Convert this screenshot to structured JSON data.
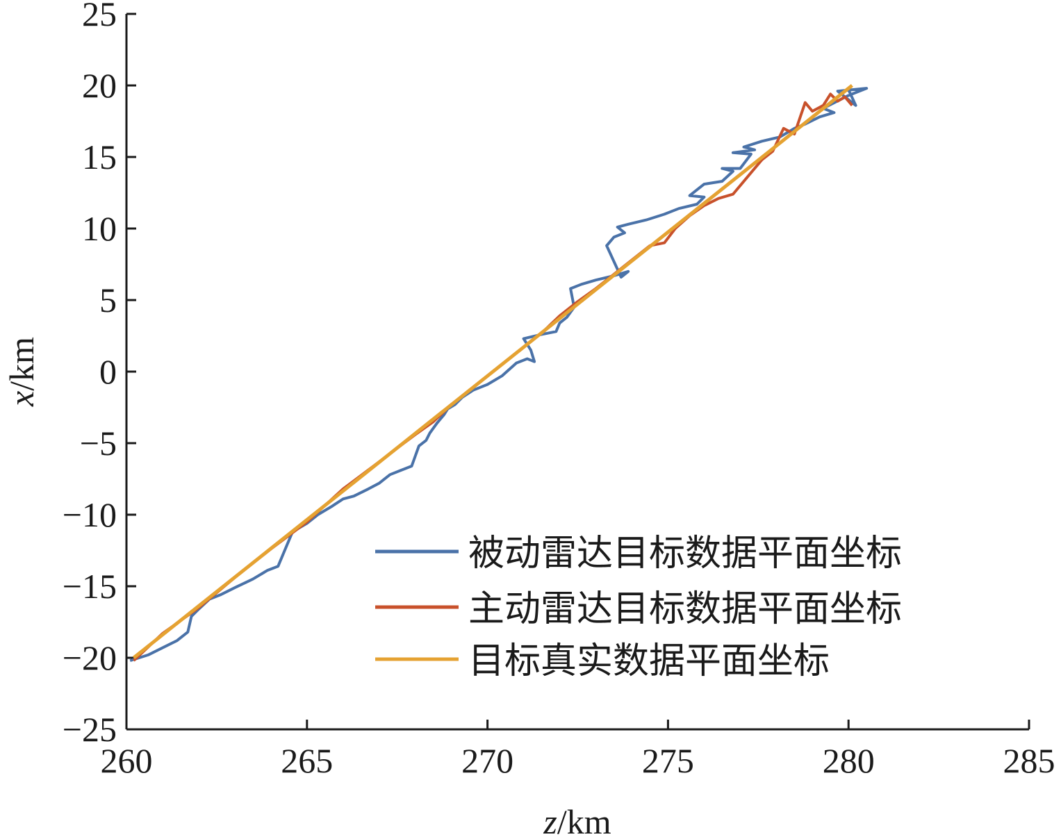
{
  "chart_data": {
    "type": "line",
    "title": "",
    "xlabel_var": "z",
    "xlabel_unit": "/km",
    "ylabel_var": "x",
    "ylabel_unit": "/km",
    "xlim": [
      260,
      285
    ],
    "ylim": [
      -25,
      25
    ],
    "xticks": [
      "260",
      "265",
      "270",
      "275",
      "280",
      "285"
    ],
    "yticks": [
      "25",
      "20",
      "15",
      "10",
      "5",
      "0",
      "−5",
      "−10",
      "−15",
      "−20",
      "−25"
    ],
    "xtick_values": [
      260,
      265,
      270,
      275,
      280,
      285
    ],
    "ytick_values": [
      25,
      20,
      15,
      10,
      5,
      0,
      -5,
      -10,
      -15,
      -20,
      -25
    ],
    "legend_position": "bottom-right",
    "series": [
      {
        "name": "被动雷达目标数据平面坐标",
        "color": "#4a72a8",
        "x": [
          260.1,
          260.6,
          261.0,
          261.4,
          261.7,
          261.8,
          262.0,
          262.3,
          262.6,
          263.0,
          263.5,
          263.9,
          264.2,
          264.3,
          264.4,
          264.6,
          265.0,
          265.3,
          265.7,
          266.0,
          266.3,
          266.7,
          267.0,
          267.3,
          267.6,
          267.9,
          268.0,
          268.1,
          268.3,
          268.4,
          268.6,
          268.8,
          268.9,
          269.1,
          269.3,
          269.6,
          270.0,
          270.4,
          270.8,
          271.1,
          271.3,
          271.2,
          271.0,
          271.5,
          271.9,
          272.0,
          272.2,
          272.4,
          272.3,
          272.6,
          273.0,
          273.5,
          273.9,
          273.7,
          273.3,
          273.5,
          273.8,
          273.6,
          273.9,
          274.4,
          274.9,
          275.3,
          275.8,
          276.0,
          275.6,
          276.0,
          276.5,
          276.8,
          276.5,
          277.0,
          277.3,
          276.8,
          277.4,
          277.1,
          277.6,
          278.1,
          278.5,
          278.8,
          279.2,
          279.6,
          279.3,
          280.0,
          280.5,
          279.7,
          280.2,
          280.0
        ],
        "y": [
          -20.2,
          -19.8,
          -19.3,
          -18.8,
          -18.2,
          -17.1,
          -16.6,
          -15.9,
          -15.6,
          -15.1,
          -14.5,
          -13.9,
          -13.6,
          -13.0,
          -12.4,
          -11.2,
          -10.6,
          -10.0,
          -9.4,
          -8.9,
          -8.7,
          -8.2,
          -7.8,
          -7.2,
          -6.9,
          -6.6,
          -5.9,
          -5.2,
          -4.8,
          -4.3,
          -3.6,
          -3.0,
          -2.6,
          -2.3,
          -1.8,
          -1.3,
          -0.9,
          -0.3,
          0.6,
          0.9,
          0.7,
          1.5,
          2.3,
          2.6,
          2.8,
          3.4,
          3.8,
          4.5,
          5.8,
          6.1,
          6.4,
          6.7,
          7.0,
          6.6,
          8.8,
          9.4,
          9.7,
          10.1,
          10.3,
          10.6,
          11.0,
          11.4,
          11.7,
          12.2,
          12.3,
          13.1,
          13.3,
          14.0,
          14.2,
          14.2,
          15.2,
          15.3,
          15.5,
          15.7,
          16.1,
          16.4,
          17.0,
          17.3,
          17.8,
          18.1,
          18.4,
          19.3,
          19.8,
          19.6,
          18.6,
          19.7
        ]
      },
      {
        "name": "主动雷达目标数据平面坐标",
        "color": "#c8512b",
        "x": [
          260.2,
          261.0,
          262.0,
          263.0,
          264.0,
          265.0,
          266.0,
          267.0,
          268.0,
          268.5,
          269.0,
          269.5,
          270.0,
          270.5,
          271.0,
          271.5,
          272.0,
          272.5,
          273.0,
          273.5,
          274.0,
          274.5,
          274.9,
          275.2,
          275.6,
          276.0,
          276.4,
          276.8,
          277.2,
          277.6,
          277.9,
          278.2,
          278.5,
          278.8,
          279.0,
          279.3,
          279.5,
          279.7,
          279.9,
          280.1
        ],
        "y": [
          -20.2,
          -18.3,
          -16.5,
          -14.4,
          -12.4,
          -10.5,
          -8.2,
          -6.3,
          -4.4,
          -3.5,
          -2.3,
          -1.3,
          -0.3,
          0.7,
          1.7,
          2.7,
          3.9,
          4.9,
          5.8,
          6.8,
          7.8,
          8.8,
          9.0,
          10.0,
          10.9,
          11.6,
          12.1,
          12.4,
          13.6,
          14.8,
          15.4,
          17.0,
          16.6,
          18.8,
          18.2,
          18.6,
          19.4,
          18.9,
          19.2,
          18.6
        ]
      },
      {
        "name": "目标真实数据平面坐标",
        "color": "#e5a232",
        "x": [
          260.2,
          280.1
        ],
        "y": [
          -20.0,
          20.0
        ]
      }
    ]
  }
}
